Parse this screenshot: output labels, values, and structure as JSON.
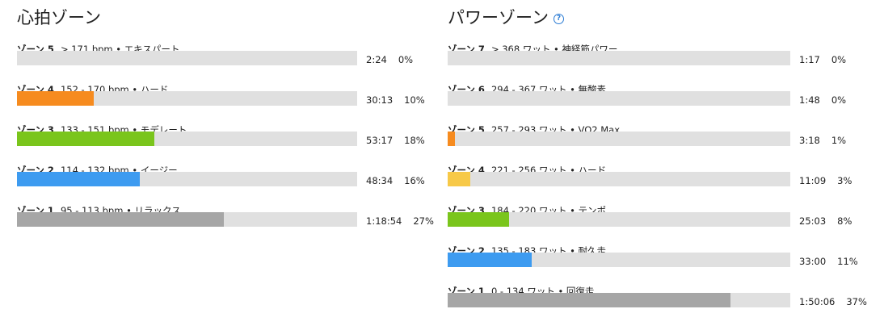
{
  "panels": [
    {
      "title": "心拍ゾーン",
      "zones": [
        {
          "name": "ゾーン 5",
          "range": "> 171 bpm • エキスパート",
          "time": "2:24",
          "percent": 0,
          "percent_label": "0%"
        },
        {
          "name": "ゾーン 4",
          "range": "152 - 170 bpm • ハード",
          "time": "30:13",
          "percent": 10,
          "percent_label": "10%",
          "color": "#f68b1f"
        },
        {
          "name": "ゾーン 3",
          "range": "133 - 151 bpm • モデレート",
          "time": "53:17",
          "percent": 18,
          "percent_label": "18%",
          "color": "#7ac51c"
        },
        {
          "name": "ゾーン 2",
          "range": "114 - 132 bpm • イージー",
          "time": "48:34",
          "percent": 16,
          "percent_label": "16%",
          "color": "#3d9bf0"
        },
        {
          "name": "ゾーン 1",
          "range": "95 - 113 bpm • リラックス",
          "time": "1:18:54",
          "percent": 27,
          "percent_label": "27%",
          "color": "#a6a6a6"
        }
      ]
    },
    {
      "title": "パワーゾーン",
      "help": true,
      "zones": [
        {
          "name": "ゾーン 7",
          "range": "> 368 ワット • 神経筋パワー",
          "time": "1:17",
          "percent": 0,
          "percent_label": "0%"
        },
        {
          "name": "ゾーン 6",
          "range": "294 - 367 ワット • 無酸素",
          "time": "1:48",
          "percent": 0,
          "percent_label": "0%"
        },
        {
          "name": "ゾーン 5",
          "range": "257 - 293 ワット • VO2 Max",
          "time": "3:18",
          "percent": 1,
          "percent_label": "1%",
          "color": "#f68b1f"
        },
        {
          "name": "ゾーン 4",
          "range": "221 - 256 ワット • ハード",
          "time": "11:09",
          "percent": 3,
          "percent_label": "3%",
          "color": "#f7c948"
        },
        {
          "name": "ゾーン 3",
          "range": "184 - 220 ワット • テンポ",
          "time": "25:03",
          "percent": 8,
          "percent_label": "8%",
          "color": "#7ac51c"
        },
        {
          "name": "ゾーン 2",
          "range": "135 - 183 ワット • 耐久走",
          "time": "33:00",
          "percent": 11,
          "percent_label": "11%",
          "color": "#3d9bf0"
        },
        {
          "name": "ゾーン 1",
          "range": "0 - 134 ワット • 回復走",
          "time": "1:50:06",
          "percent": 37,
          "percent_label": "37%",
          "color": "#a6a6a6"
        }
      ]
    }
  ]
}
